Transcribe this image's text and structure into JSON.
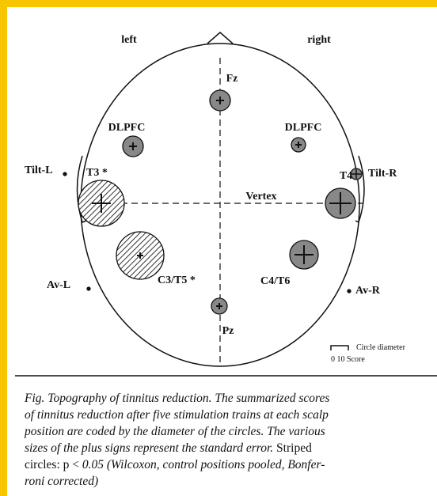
{
  "figure": {
    "side_left": "left",
    "side_right": "right",
    "labels": {
      "fz": "Fz",
      "dlpfc_left": "DLPFC",
      "dlpfc_right": "DLPFC",
      "tilt_l": "Tilt-L",
      "t3": "T3 *",
      "vertex": "Vertex",
      "t4": "T4",
      "tilt_r": "Tilt-R",
      "c3t5": "C3/T5 *",
      "c4t6": "C4/T6",
      "av_l": "Av-L",
      "av_r": "Av-R",
      "pz": "Pz"
    },
    "legend": {
      "title": "Circle diameter",
      "scale": "0   10  Score"
    }
  },
  "caption": {
    "lines": [
      "Fig. Topography of tinnitus reduction. The summarized scores",
      "of tinnitus reduction after five stimulation trains at each scalp",
      "position are coded by the diameter of the circles. The various",
      "sizes of the plus signs represent the standard error.",
      "Striped",
      "circles: p <",
      "0.05 (Wilcoxon, control positions pooled, Bonfer-",
      "roni corrected)"
    ]
  }
}
